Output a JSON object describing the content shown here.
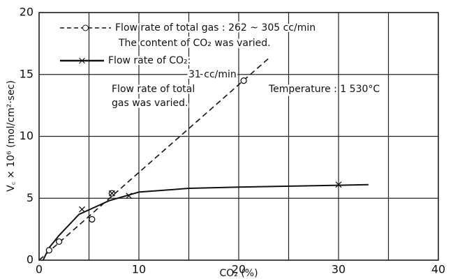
{
  "chart_data": {
    "type": "line",
    "xlabel": "CO₂ (%)",
    "ylabel": "V꜀ × 10⁶ (mol/cm²·sec)",
    "xlim": [
      0,
      40
    ],
    "xticks": [
      0,
      10,
      20,
      30,
      40
    ],
    "xminorticks": [
      5,
      15,
      25,
      35
    ],
    "ylim": [
      0,
      20
    ],
    "yticks": [
      0,
      5,
      10,
      15,
      20
    ],
    "grid": true,
    "annotation": "Temperature : 1 530°C",
    "series": [
      {
        "name": "Flow rate of total gas : 262 ~ 305 cc/min",
        "notes": [
          "The content of CO₂ was varied."
        ],
        "color": "#111111",
        "dash": true,
        "marker": "circle",
        "x": [
          1,
          2,
          5.3,
          7.3,
          20.5
        ],
        "values": [
          0.8,
          1.5,
          3.3,
          5.4,
          14.5
        ],
        "line_x": [
          0,
          23
        ],
        "line_values": [
          0,
          16.3
        ]
      },
      {
        "name": "Flow rate of CO₂:",
        "notes": [
          "31 cc/min",
          "Flow rate of total",
          "gas was varied."
        ],
        "color": "#111111",
        "dash": false,
        "marker": "cross",
        "x": [
          4.3,
          7.3,
          9,
          30
        ],
        "values": [
          4.1,
          5.4,
          5.2,
          6.1
        ],
        "line_x": [
          0.4,
          1,
          2,
          4,
          7,
          10,
          15,
          20,
          30,
          33
        ],
        "line_values": [
          0,
          1,
          2,
          3.7,
          4.8,
          5.5,
          5.8,
          5.9,
          6.05,
          6.1
        ]
      }
    ]
  }
}
